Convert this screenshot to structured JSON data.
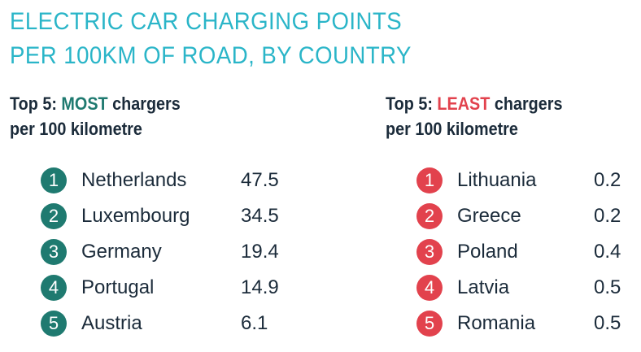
{
  "title": {
    "line1": "ELECTRIC CAR CHARGING POINTS",
    "line2": "PER 100KM OF ROAD, BY COUNTRY"
  },
  "most": {
    "heading_prefix": "Top 5: ",
    "heading_highlight": "MOST",
    "heading_suffix": " chargers",
    "heading_line2": "per 100 kilometre"
  },
  "least": {
    "heading_prefix": "Top 5: ",
    "heading_highlight": "LEAST",
    "heading_suffix": " chargers",
    "heading_line2": "per 100 kilometre"
  },
  "colors": {
    "title": "#2ab5c8",
    "most_accent": "#1f7a70",
    "least_accent": "#e2424d",
    "text": "#1b2b3a"
  },
  "chart_data": [
    {
      "type": "table",
      "title": "Top 5: MOST chargers per 100 kilometre",
      "columns": [
        "rank",
        "country",
        "value"
      ],
      "rows": [
        {
          "rank": "1",
          "country": "Netherlands",
          "value": "47.5"
        },
        {
          "rank": "2",
          "country": "Luxembourg",
          "value": "34.5"
        },
        {
          "rank": "3",
          "country": "Germany",
          "value": "19.4"
        },
        {
          "rank": "4",
          "country": "Portugal",
          "value": "14.9"
        },
        {
          "rank": "5",
          "country": "Austria",
          "value": "6.1"
        }
      ]
    },
    {
      "type": "table",
      "title": "Top 5: LEAST chargers per 100 kilometre",
      "columns": [
        "rank",
        "country",
        "value"
      ],
      "rows": [
        {
          "rank": "1",
          "country": "Lithuania",
          "value": "0.2"
        },
        {
          "rank": "2",
          "country": "Greece",
          "value": "0.2"
        },
        {
          "rank": "3",
          "country": "Poland",
          "value": "0.4"
        },
        {
          "rank": "4",
          "country": "Latvia",
          "value": "0.5"
        },
        {
          "rank": "5",
          "country": "Romania",
          "value": "0.5"
        }
      ]
    }
  ]
}
